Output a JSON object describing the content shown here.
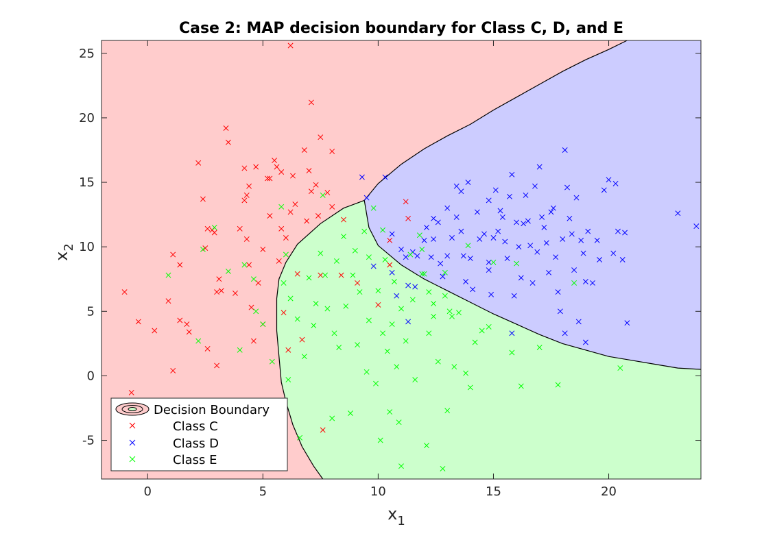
{
  "chart_data": {
    "type": "scatter",
    "title": "Case 2: MAP decision boundary for Class C, D, and E",
    "xlabel": "x",
    "xlabel_sub": "1",
    "ylabel": "x",
    "ylabel_sub": "2",
    "xlim": [
      -2,
      24
    ],
    "ylim": [
      -8,
      26
    ],
    "xticks": [
      0,
      5,
      10,
      15,
      20
    ],
    "yticks": [
      -5,
      0,
      5,
      10,
      15,
      20,
      25
    ],
    "grid": false,
    "legend_placement": "bottom-left",
    "legend": {
      "boundary_label": "Decision Boundary",
      "entries": [
        "Class C",
        "Class D",
        "Class E"
      ]
    },
    "regions": [
      {
        "class": "Class C",
        "color": "#ffcccc"
      },
      {
        "class": "Class D",
        "color": "#ccccff"
      },
      {
        "class": "Class E",
        "color": "#ccffcc"
      }
    ],
    "boundaries": {
      "D_region_upper": [
        [
          9.4,
          13.6
        ],
        [
          10.0,
          14.9
        ],
        [
          11.0,
          16.4
        ],
        [
          12.0,
          17.6
        ],
        [
          13.0,
          18.6
        ],
        [
          14.0,
          19.5
        ],
        [
          15.0,
          20.6
        ],
        [
          16.0,
          21.6
        ],
        [
          17.0,
          22.6
        ],
        [
          18.0,
          23.6
        ],
        [
          19.0,
          24.5
        ],
        [
          20.0,
          25.3
        ],
        [
          20.8,
          26.0
        ]
      ],
      "D_region_lower": [
        [
          9.4,
          13.6
        ],
        [
          9.6,
          11.5
        ],
        [
          10.0,
          10.1
        ],
        [
          11.0,
          8.6
        ],
        [
          12.0,
          7.5
        ],
        [
          13.0,
          6.6
        ],
        [
          14.0,
          5.7
        ],
        [
          15.0,
          4.8
        ],
        [
          16.0,
          4.0
        ],
        [
          17.0,
          3.2
        ],
        [
          18.0,
          2.5
        ],
        [
          19.0,
          2.0
        ],
        [
          20.0,
          1.5
        ],
        [
          21.0,
          1.2
        ],
        [
          22.0,
          0.9
        ],
        [
          23.0,
          0.6
        ],
        [
          24.0,
          0.5
        ]
      ],
      "E_region_left": [
        [
          9.4,
          13.6
        ],
        [
          8.5,
          13.0
        ],
        [
          7.5,
          11.8
        ],
        [
          6.5,
          10.2
        ],
        [
          6.0,
          8.8
        ],
        [
          5.7,
          7.5
        ],
        [
          5.6,
          6.0
        ],
        [
          5.6,
          5.0
        ],
        [
          5.6,
          3.5
        ],
        [
          5.7,
          1.5
        ],
        [
          5.8,
          -0.5
        ],
        [
          6.0,
          -2.0
        ],
        [
          6.3,
          -3.8
        ],
        [
          6.7,
          -5.5
        ],
        [
          7.2,
          -7.0
        ],
        [
          7.6,
          -8.0
        ]
      ]
    },
    "series": [
      {
        "name": "Class C",
        "color": "#ff0000",
        "points": [
          [
            -1.0,
            6.5
          ],
          [
            -0.4,
            4.2
          ],
          [
            -0.7,
            -1.3
          ],
          [
            0.3,
            3.5
          ],
          [
            0.9,
            5.8
          ],
          [
            1.1,
            9.4
          ],
          [
            1.1,
            0.4
          ],
          [
            1.4,
            8.6
          ],
          [
            1.4,
            4.3
          ],
          [
            1.7,
            4.0
          ],
          [
            1.8,
            3.4
          ],
          [
            2.2,
            16.5
          ],
          [
            2.4,
            13.7
          ],
          [
            2.5,
            9.9
          ],
          [
            2.6,
            2.1
          ],
          [
            2.6,
            11.4
          ],
          [
            2.8,
            11.3
          ],
          [
            2.9,
            11.1
          ],
          [
            3.0,
            0.8
          ],
          [
            3.0,
            6.5
          ],
          [
            3.1,
            7.5
          ],
          [
            3.2,
            6.6
          ],
          [
            3.4,
            19.2
          ],
          [
            3.5,
            18.1
          ],
          [
            3.8,
            6.4
          ],
          [
            4.0,
            11.4
          ],
          [
            4.2,
            16.1
          ],
          [
            4.2,
            13.6
          ],
          [
            4.3,
            14.0
          ],
          [
            4.3,
            10.6
          ],
          [
            4.4,
            8.6
          ],
          [
            4.4,
            14.7
          ],
          [
            4.5,
            5.3
          ],
          [
            4.6,
            2.7
          ],
          [
            4.7,
            16.2
          ],
          [
            4.8,
            7.2
          ],
          [
            5.0,
            4.0
          ],
          [
            5.0,
            9.8
          ],
          [
            5.2,
            15.3
          ],
          [
            5.3,
            12.4
          ],
          [
            5.3,
            15.3
          ],
          [
            5.5,
            16.7
          ],
          [
            5.6,
            16.2
          ],
          [
            5.7,
            8.9
          ],
          [
            5.8,
            15.8
          ],
          [
            5.8,
            11.4
          ],
          [
            5.9,
            4.9
          ],
          [
            6.0,
            10.7
          ],
          [
            6.1,
            2.0
          ],
          [
            6.2,
            12.7
          ],
          [
            6.2,
            25.6
          ],
          [
            6.3,
            15.5
          ],
          [
            6.4,
            13.3
          ],
          [
            6.5,
            7.9
          ],
          [
            6.7,
            2.8
          ],
          [
            6.8,
            17.5
          ],
          [
            6.9,
            12.0
          ],
          [
            7.0,
            15.9
          ],
          [
            7.1,
            21.2
          ],
          [
            7.1,
            14.3
          ],
          [
            7.3,
            14.8
          ],
          [
            7.4,
            12.4
          ],
          [
            7.5,
            7.8
          ],
          [
            7.5,
            18.5
          ],
          [
            7.6,
            -4.2
          ],
          [
            7.8,
            14.2
          ],
          [
            8.0,
            13.1
          ],
          [
            8.0,
            17.4
          ],
          [
            8.4,
            7.8
          ],
          [
            8.5,
            12.1
          ],
          [
            9.1,
            7.2
          ],
          [
            10.0,
            5.5
          ],
          [
            10.5,
            8.6
          ],
          [
            10.5,
            10.5
          ],
          [
            11.2,
            13.5
          ],
          [
            11.3,
            12.2
          ]
        ]
      },
      {
        "name": "Class D",
        "color": "#0000ff",
        "points": [
          [
            9.3,
            15.4
          ],
          [
            9.5,
            13.8
          ],
          [
            9.8,
            8.5
          ],
          [
            10.3,
            15.4
          ],
          [
            10.6,
            11.0
          ],
          [
            10.6,
            8.0
          ],
          [
            10.8,
            6.2
          ],
          [
            11.0,
            9.8
          ],
          [
            11.2,
            9.2
          ],
          [
            11.3,
            7.0
          ],
          [
            11.3,
            4.2
          ],
          [
            11.5,
            9.6
          ],
          [
            11.6,
            6.9
          ],
          [
            11.7,
            9.3
          ],
          [
            12.0,
            10.5
          ],
          [
            12.1,
            11.5
          ],
          [
            12.3,
            9.2
          ],
          [
            12.4,
            12.2
          ],
          [
            12.4,
            10.6
          ],
          [
            12.6,
            11.9
          ],
          [
            12.7,
            8.7
          ],
          [
            12.8,
            7.7
          ],
          [
            13.0,
            13.0
          ],
          [
            13.0,
            9.3
          ],
          [
            13.2,
            10.7
          ],
          [
            13.4,
            12.3
          ],
          [
            13.4,
            14.7
          ],
          [
            13.6,
            14.3
          ],
          [
            13.6,
            11.2
          ],
          [
            13.7,
            9.3
          ],
          [
            13.8,
            7.3
          ],
          [
            13.9,
            15.0
          ],
          [
            14.0,
            9.1
          ],
          [
            14.1,
            6.7
          ],
          [
            14.3,
            12.7
          ],
          [
            14.4,
            10.6
          ],
          [
            14.6,
            11.0
          ],
          [
            14.8,
            13.6
          ],
          [
            14.8,
            8.8
          ],
          [
            14.9,
            6.3
          ],
          [
            15.0,
            10.7
          ],
          [
            15.1,
            14.4
          ],
          [
            15.2,
            11.2
          ],
          [
            15.3,
            12.8
          ],
          [
            15.4,
            12.3
          ],
          [
            15.5,
            10.4
          ],
          [
            15.6,
            9.1
          ],
          [
            15.7,
            13.9
          ],
          [
            15.8,
            15.6
          ],
          [
            15.9,
            6.2
          ],
          [
            16.0,
            11.9
          ],
          [
            16.1,
            10.0
          ],
          [
            16.2,
            7.6
          ],
          [
            16.3,
            11.8
          ],
          [
            16.4,
            14.0
          ],
          [
            16.5,
            12.0
          ],
          [
            16.6,
            10.1
          ],
          [
            16.7,
            7.2
          ],
          [
            16.8,
            14.7
          ],
          [
            16.9,
            9.6
          ],
          [
            17.0,
            16.2
          ],
          [
            17.1,
            12.3
          ],
          [
            17.2,
            11.5
          ],
          [
            17.3,
            10.3
          ],
          [
            17.4,
            8.0
          ],
          [
            17.5,
            12.7
          ],
          [
            17.6,
            13.0
          ],
          [
            17.7,
            9.2
          ],
          [
            17.8,
            6.5
          ],
          [
            17.9,
            5.0
          ],
          [
            18.0,
            10.6
          ],
          [
            18.1,
            17.5
          ],
          [
            18.2,
            14.6
          ],
          [
            18.3,
            12.2
          ],
          [
            18.4,
            11.0
          ],
          [
            18.5,
            8.2
          ],
          [
            18.6,
            13.8
          ],
          [
            18.7,
            4.2
          ],
          [
            18.8,
            10.5
          ],
          [
            18.9,
            9.5
          ],
          [
            19.0,
            7.3
          ],
          [
            19.1,
            11.2
          ],
          [
            19.3,
            7.2
          ],
          [
            19.5,
            10.5
          ],
          [
            19.6,
            9.0
          ],
          [
            19.8,
            14.4
          ],
          [
            20.0,
            15.2
          ],
          [
            20.2,
            9.5
          ],
          [
            20.3,
            14.9
          ],
          [
            20.4,
            11.2
          ],
          [
            20.6,
            9.0
          ],
          [
            20.7,
            11.1
          ],
          [
            20.8,
            4.1
          ],
          [
            18.1,
            3.3
          ],
          [
            19.0,
            2.6
          ],
          [
            15.8,
            3.3
          ],
          [
            23.0,
            12.6
          ],
          [
            23.8,
            11.6
          ],
          [
            14.8,
            8.2
          ]
        ]
      },
      {
        "name": "Class E",
        "color": "#00ff00",
        "points": [
          [
            0.9,
            7.8
          ],
          [
            2.2,
            2.7
          ],
          [
            2.4,
            9.8
          ],
          [
            2.9,
            11.5
          ],
          [
            3.5,
            8.1
          ],
          [
            4.0,
            2.0
          ],
          [
            4.2,
            8.6
          ],
          [
            4.6,
            7.5
          ],
          [
            4.7,
            5.0
          ],
          [
            5.0,
            4.0
          ],
          [
            5.4,
            1.1
          ],
          [
            5.8,
            13.1
          ],
          [
            5.9,
            7.2
          ],
          [
            6.0,
            9.4
          ],
          [
            6.1,
            -0.3
          ],
          [
            6.2,
            6.0
          ],
          [
            6.5,
            4.4
          ],
          [
            6.6,
            -4.8
          ],
          [
            6.8,
            1.5
          ],
          [
            7.0,
            7.6
          ],
          [
            7.2,
            3.9
          ],
          [
            7.3,
            5.6
          ],
          [
            7.5,
            9.5
          ],
          [
            7.6,
            14.0
          ],
          [
            7.7,
            7.8
          ],
          [
            7.8,
            5.2
          ],
          [
            8.0,
            -3.3
          ],
          [
            8.1,
            3.3
          ],
          [
            8.2,
            8.9
          ],
          [
            8.3,
            2.2
          ],
          [
            8.5,
            10.8
          ],
          [
            8.6,
            5.4
          ],
          [
            8.8,
            -2.9
          ],
          [
            8.9,
            7.8
          ],
          [
            9.0,
            9.7
          ],
          [
            9.1,
            2.4
          ],
          [
            9.2,
            6.5
          ],
          [
            9.4,
            11.2
          ],
          [
            9.5,
            0.3
          ],
          [
            9.6,
            4.3
          ],
          [
            9.8,
            13.0
          ],
          [
            9.9,
            -0.6
          ],
          [
            10.0,
            6.6
          ],
          [
            10.1,
            -5.0
          ],
          [
            10.2,
            3.3
          ],
          [
            10.3,
            9.0
          ],
          [
            10.4,
            1.9
          ],
          [
            10.5,
            -2.8
          ],
          [
            10.6,
            4.0
          ],
          [
            10.7,
            7.3
          ],
          [
            10.8,
            0.7
          ],
          [
            10.9,
            -3.6
          ],
          [
            11.0,
            5.2
          ],
          [
            11.0,
            -7.0
          ],
          [
            11.2,
            2.7
          ],
          [
            11.4,
            9.4
          ],
          [
            11.5,
            5.9
          ],
          [
            11.6,
            -0.3
          ],
          [
            11.8,
            10.9
          ],
          [
            12.0,
            7.9
          ],
          [
            12.1,
            -5.4
          ],
          [
            12.2,
            3.3
          ],
          [
            12.4,
            4.6
          ],
          [
            12.6,
            1.1
          ],
          [
            12.8,
            -7.2
          ],
          [
            13.0,
            -2.7
          ],
          [
            13.1,
            5.0
          ],
          [
            13.3,
            0.7
          ],
          [
            13.5,
            4.9
          ],
          [
            13.8,
            0.2
          ],
          [
            14.0,
            -0.9
          ],
          [
            14.2,
            2.6
          ],
          [
            14.5,
            3.5
          ],
          [
            14.8,
            3.8
          ],
          [
            15.0,
            8.8
          ],
          [
            15.8,
            1.8
          ],
          [
            16.2,
            -0.8
          ],
          [
            17.0,
            2.2
          ],
          [
            17.8,
            -0.7
          ],
          [
            18.5,
            7.2
          ],
          [
            20.5,
            0.6
          ],
          [
            16.0,
            8.7
          ],
          [
            13.9,
            10.1
          ],
          [
            12.9,
            8.0
          ],
          [
            11.9,
            7.9
          ],
          [
            10.2,
            11.3
          ],
          [
            11.9,
            9.8
          ],
          [
            12.2,
            6.5
          ],
          [
            12.9,
            6.2
          ],
          [
            13.2,
            4.6
          ],
          [
            12.4,
            5.6
          ],
          [
            9.6,
            9.2
          ]
        ]
      }
    ]
  }
}
